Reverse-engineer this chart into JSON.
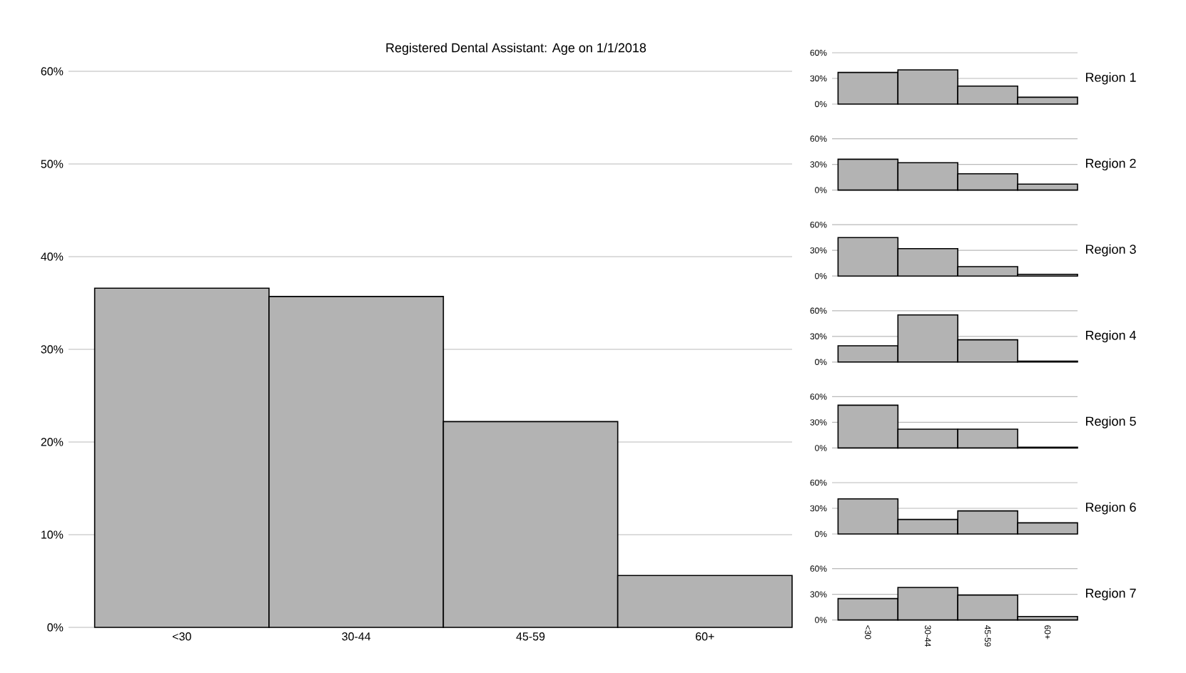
{
  "chart_data": [
    {
      "type": "bar",
      "title": "Registered Dental Assistant: Age on 1/1/2018",
      "categories": [
        "<30",
        "30-44",
        "45-59",
        "60+"
      ],
      "values": [
        36.6,
        35.7,
        22.2,
        5.6
      ],
      "color": "#b3b3b3",
      "ylim": [
        0,
        60
      ],
      "yticks": [
        {
          "value": 0,
          "label": "0%"
        },
        {
          "value": 10,
          "label": "10%"
        },
        {
          "value": 20,
          "label": "20%"
        },
        {
          "value": 30,
          "label": "30%"
        },
        {
          "value": 40,
          "label": "40%"
        },
        {
          "value": 50,
          "label": "50%"
        },
        {
          "value": 60,
          "label": "60%"
        }
      ],
      "grid": "y"
    },
    {
      "type": "bar",
      "ylabel": "Region 1",
      "categories": [
        null,
        null,
        null,
        null
      ],
      "values": [
        37,
        40,
        21,
        8
      ],
      "color": "#b3b3b3",
      "ylim": [
        0,
        60
      ],
      "yticks": [
        {
          "value": 0,
          "label": "0%"
        },
        {
          "value": 30,
          "label": "30%"
        },
        {
          "value": 60,
          "label": "60%"
        }
      ],
      "grid": "y",
      "tick_labels": "y"
    },
    {
      "type": "bar",
      "ylabel": "Region 2",
      "categories": [
        null,
        null,
        null,
        null
      ],
      "values": [
        36,
        32,
        19,
        7
      ],
      "color": "#b3b3b3",
      "ylim": [
        0,
        60
      ],
      "yticks": [
        {
          "value": 0,
          "label": "0%"
        },
        {
          "value": 30,
          "label": "30%"
        },
        {
          "value": 60,
          "label": "60%"
        }
      ],
      "grid": "y",
      "tick_labels": "y"
    },
    {
      "type": "bar",
      "ylabel": "Region 3",
      "categories": [
        null,
        null,
        null,
        null
      ],
      "values": [
        45,
        32,
        11,
        2
      ],
      "color": "#b3b3b3",
      "ylim": [
        0,
        60
      ],
      "yticks": [
        {
          "value": 0,
          "label": "0%"
        },
        {
          "value": 30,
          "label": "30%"
        },
        {
          "value": 60,
          "label": "60%"
        }
      ],
      "grid": "y",
      "tick_labels": "y"
    },
    {
      "type": "bar",
      "ylabel": "Region 4",
      "categories": [
        null,
        null,
        null,
        null
      ],
      "values": [
        19,
        55,
        26,
        1
      ],
      "color": "#b3b3b3",
      "ylim": [
        0,
        60
      ],
      "yticks": [
        {
          "value": 0,
          "label": "0%"
        },
        {
          "value": 30,
          "label": "30%"
        },
        {
          "value": 60,
          "label": "60%"
        }
      ],
      "grid": "y",
      "tick_labels": "y"
    },
    {
      "type": "bar",
      "ylabel": "Region 5",
      "categories": [
        null,
        null,
        null,
        null
      ],
      "values": [
        50,
        22,
        22,
        1
      ],
      "color": "#b3b3b3",
      "ylim": [
        0,
        60
      ],
      "yticks": [
        {
          "value": 0,
          "label": "0%"
        },
        {
          "value": 30,
          "label": "30%"
        },
        {
          "value": 60,
          "label": "60%"
        }
      ],
      "grid": "y",
      "tick_labels": "y"
    },
    {
      "type": "bar",
      "ylabel": "Region 6",
      "categories": [
        null,
        null,
        null,
        null
      ],
      "values": [
        41,
        17,
        27,
        13
      ],
      "color": "#b3b3b3",
      "ylim": [
        0,
        60
      ],
      "yticks": [
        {
          "value": 0,
          "label": "0%"
        },
        {
          "value": 30,
          "label": "30%"
        },
        {
          "value": 60,
          "label": "60%"
        }
      ],
      "grid": "y",
      "tick_labels": "y"
    },
    {
      "type": "bar",
      "ylabel": "Region 7",
      "categories": [
        "<30",
        "30-44",
        "45-59",
        "60+"
      ],
      "values": [
        25,
        38,
        29,
        4
      ],
      "color": "#b3b3b3",
      "ylim": [
        0,
        60
      ],
      "yticks": [
        {
          "value": 0,
          "label": "0%"
        },
        {
          "value": 30,
          "label": "30%"
        },
        {
          "value": 60,
          "label": "60%"
        }
      ],
      "grid": "y"
    }
  ]
}
